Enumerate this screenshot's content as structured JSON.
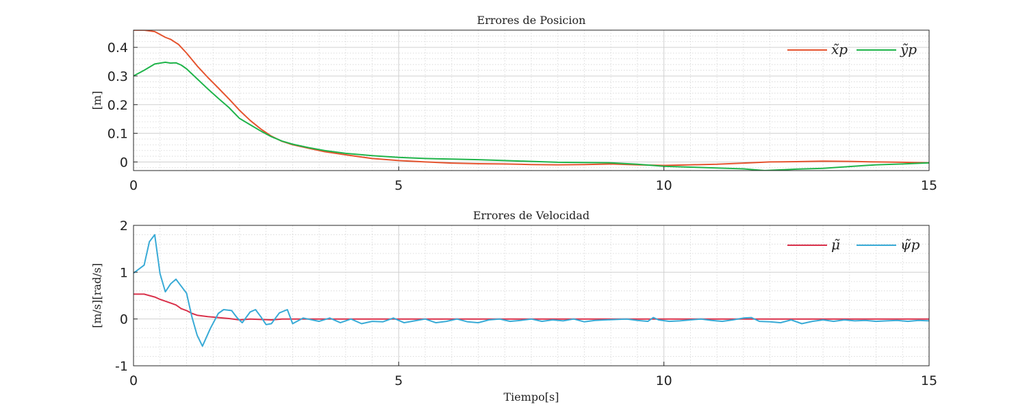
{
  "chart_data": [
    {
      "type": "line",
      "title": "Errores de Posicion",
      "xlabel": "",
      "ylabel": "[m]",
      "xlim": [
        0,
        15
      ],
      "ylim": [
        -0.03,
        0.46
      ],
      "xticks": [
        0,
        5,
        10,
        15
      ],
      "xtick_labels": [
        "0",
        "5",
        "10",
        "15"
      ],
      "yticks": [
        0,
        0.1,
        0.2,
        0.3,
        0.4
      ],
      "ytick_labels": [
        "0",
        "0.1",
        "0.2",
        "0.3",
        "0.4"
      ],
      "grid": true,
      "minor_grid": true,
      "legend_position": "top-right",
      "legend_layout": "horizontal",
      "series": [
        {
          "name": "x̃p",
          "color": "#e5532e",
          "x": [
            0,
            0.2,
            0.4,
            0.5,
            0.6,
            0.7,
            0.85,
            1.0,
            1.2,
            1.4,
            1.6,
            1.8,
            2.0,
            2.2,
            2.4,
            2.6,
            2.8,
            3.0,
            3.3,
            3.6,
            4.0,
            4.5,
            5.0,
            5.5,
            6.0,
            6.5,
            7.0,
            7.5,
            8.0,
            8.5,
            9.0,
            9.5,
            10.0,
            10.5,
            11.0,
            11.5,
            12.0,
            12.5,
            13.0,
            13.5,
            14.0,
            14.5,
            15.0
          ],
          "y": [
            0.46,
            0.46,
            0.455,
            0.445,
            0.435,
            0.428,
            0.41,
            0.38,
            0.335,
            0.295,
            0.258,
            0.22,
            0.18,
            0.145,
            0.115,
            0.09,
            0.072,
            0.06,
            0.048,
            0.036,
            0.025,
            0.012,
            0.005,
            0.0,
            -0.004,
            -0.006,
            -0.007,
            -0.009,
            -0.01,
            -0.009,
            -0.007,
            -0.01,
            -0.012,
            -0.01,
            -0.008,
            -0.004,
            0.0,
            0.001,
            0.003,
            0.002,
            0.0,
            -0.001,
            -0.003
          ]
        },
        {
          "name": "ỹp",
          "color": "#1fb44a",
          "x": [
            0,
            0.2,
            0.4,
            0.6,
            0.7,
            0.8,
            0.9,
            1.0,
            1.2,
            1.4,
            1.6,
            1.8,
            2.0,
            2.2,
            2.4,
            2.6,
            2.8,
            3.0,
            3.3,
            3.6,
            4.0,
            4.5,
            5.0,
            5.5,
            6.0,
            6.5,
            7.0,
            7.5,
            8.0,
            8.5,
            9.0,
            9.5,
            10.0,
            10.5,
            11.0,
            11.5,
            11.9,
            12.5,
            13.0,
            13.5,
            14.0,
            14.5,
            15.0
          ],
          "y": [
            0.3,
            0.32,
            0.342,
            0.348,
            0.345,
            0.346,
            0.338,
            0.325,
            0.29,
            0.255,
            0.222,
            0.19,
            0.152,
            0.13,
            0.108,
            0.088,
            0.073,
            0.062,
            0.05,
            0.04,
            0.03,
            0.022,
            0.016,
            0.012,
            0.01,
            0.008,
            0.005,
            0.002,
            -0.001,
            -0.002,
            -0.003,
            -0.008,
            -0.015,
            -0.018,
            -0.021,
            -0.024,
            -0.03,
            -0.025,
            -0.022,
            -0.016,
            -0.01,
            -0.007,
            -0.003
          ]
        }
      ]
    },
    {
      "type": "line",
      "title": "Errores de Velocidad",
      "xlabel": "Tiempo[s]",
      "ylabel": "[m/s][rad/s]",
      "xlim": [
        0,
        15
      ],
      "ylim": [
        -1,
        2
      ],
      "xticks": [
        0,
        5,
        10,
        15
      ],
      "xtick_labels": [
        "0",
        "5",
        "10",
        "15"
      ],
      "yticks": [
        -1,
        0,
        1,
        2
      ],
      "ytick_labels": [
        "-1",
        "0",
        "1",
        "2"
      ],
      "grid": true,
      "minor_grid": true,
      "legend_position": "top-right",
      "legend_layout": "horizontal",
      "series": [
        {
          "name": "μ̃",
          "color": "#d9304a",
          "x": [
            0,
            0.2,
            0.3,
            0.4,
            0.5,
            0.6,
            0.8,
            0.9,
            1.0,
            1.1,
            1.2,
            1.4,
            1.6,
            1.8,
            2.0,
            2.2,
            2.4,
            2.6,
            2.8,
            3.0,
            4.0,
            5.0,
            6.0,
            7.0,
            8.0,
            9.0,
            10.0,
            11.0,
            12.0,
            13.0,
            14.0,
            15.0
          ],
          "y": [
            0.53,
            0.53,
            0.5,
            0.47,
            0.42,
            0.38,
            0.3,
            0.22,
            0.18,
            0.12,
            0.08,
            0.05,
            0.03,
            0.01,
            -0.02,
            0.0,
            -0.01,
            -0.02,
            0.0,
            0.0,
            0.0,
            0.0,
            0.0,
            0.0,
            0.0,
            0.0,
            0.0,
            0.0,
            0.0,
            0.0,
            0.0,
            0.0
          ]
        },
        {
          "name": "ψ̃p",
          "color": "#38aad6",
          "x": [
            0,
            0.2,
            0.3,
            0.4,
            0.5,
            0.6,
            0.7,
            0.8,
            0.9,
            1.0,
            1.1,
            1.2,
            1.3,
            1.45,
            1.6,
            1.7,
            1.85,
            1.95,
            2.05,
            2.2,
            2.3,
            2.4,
            2.5,
            2.6,
            2.75,
            2.9,
            3.0,
            3.2,
            3.5,
            3.7,
            3.9,
            4.1,
            4.3,
            4.5,
            4.7,
            4.9,
            5.1,
            5.3,
            5.5,
            5.7,
            5.9,
            6.1,
            6.3,
            6.5,
            6.7,
            6.9,
            7.1,
            7.3,
            7.5,
            7.7,
            7.9,
            8.1,
            8.3,
            8.5,
            8.7,
            8.9,
            9.1,
            9.3,
            9.5,
            9.7,
            9.8,
            9.9,
            10.1,
            10.3,
            10.5,
            10.7,
            10.9,
            11.1,
            11.3,
            11.5,
            11.65,
            11.8,
            12.0,
            12.2,
            12.4,
            12.6,
            12.8,
            13.0,
            13.2,
            13.4,
            13.6,
            13.8,
            14.0,
            14.2,
            14.4,
            14.6,
            14.8,
            15.0
          ],
          "y": [
            0.98,
            1.15,
            1.65,
            1.8,
            0.97,
            0.58,
            0.75,
            0.85,
            0.7,
            0.55,
            0.05,
            -0.35,
            -0.58,
            -0.2,
            0.12,
            0.2,
            0.18,
            0.03,
            -0.08,
            0.15,
            0.2,
            0.05,
            -0.12,
            -0.1,
            0.13,
            0.2,
            -0.1,
            0.02,
            -0.05,
            0.02,
            -0.08,
            0.0,
            -0.1,
            -0.05,
            -0.06,
            0.02,
            -0.08,
            -0.04,
            0.0,
            -0.08,
            -0.05,
            0.0,
            -0.06,
            -0.08,
            -0.02,
            0.0,
            -0.05,
            -0.03,
            0.0,
            -0.05,
            -0.02,
            -0.04,
            0.0,
            -0.06,
            -0.03,
            -0.02,
            -0.01,
            0.0,
            -0.03,
            -0.05,
            0.03,
            -0.02,
            -0.05,
            -0.04,
            -0.02,
            0.0,
            -0.03,
            -0.05,
            -0.02,
            0.02,
            0.03,
            -0.05,
            -0.06,
            -0.08,
            -0.02,
            -0.1,
            -0.05,
            -0.02,
            -0.05,
            -0.02,
            -0.04,
            -0.03,
            -0.05,
            -0.04,
            -0.03,
            -0.05,
            -0.03,
            -0.04
          ]
        }
      ]
    }
  ]
}
